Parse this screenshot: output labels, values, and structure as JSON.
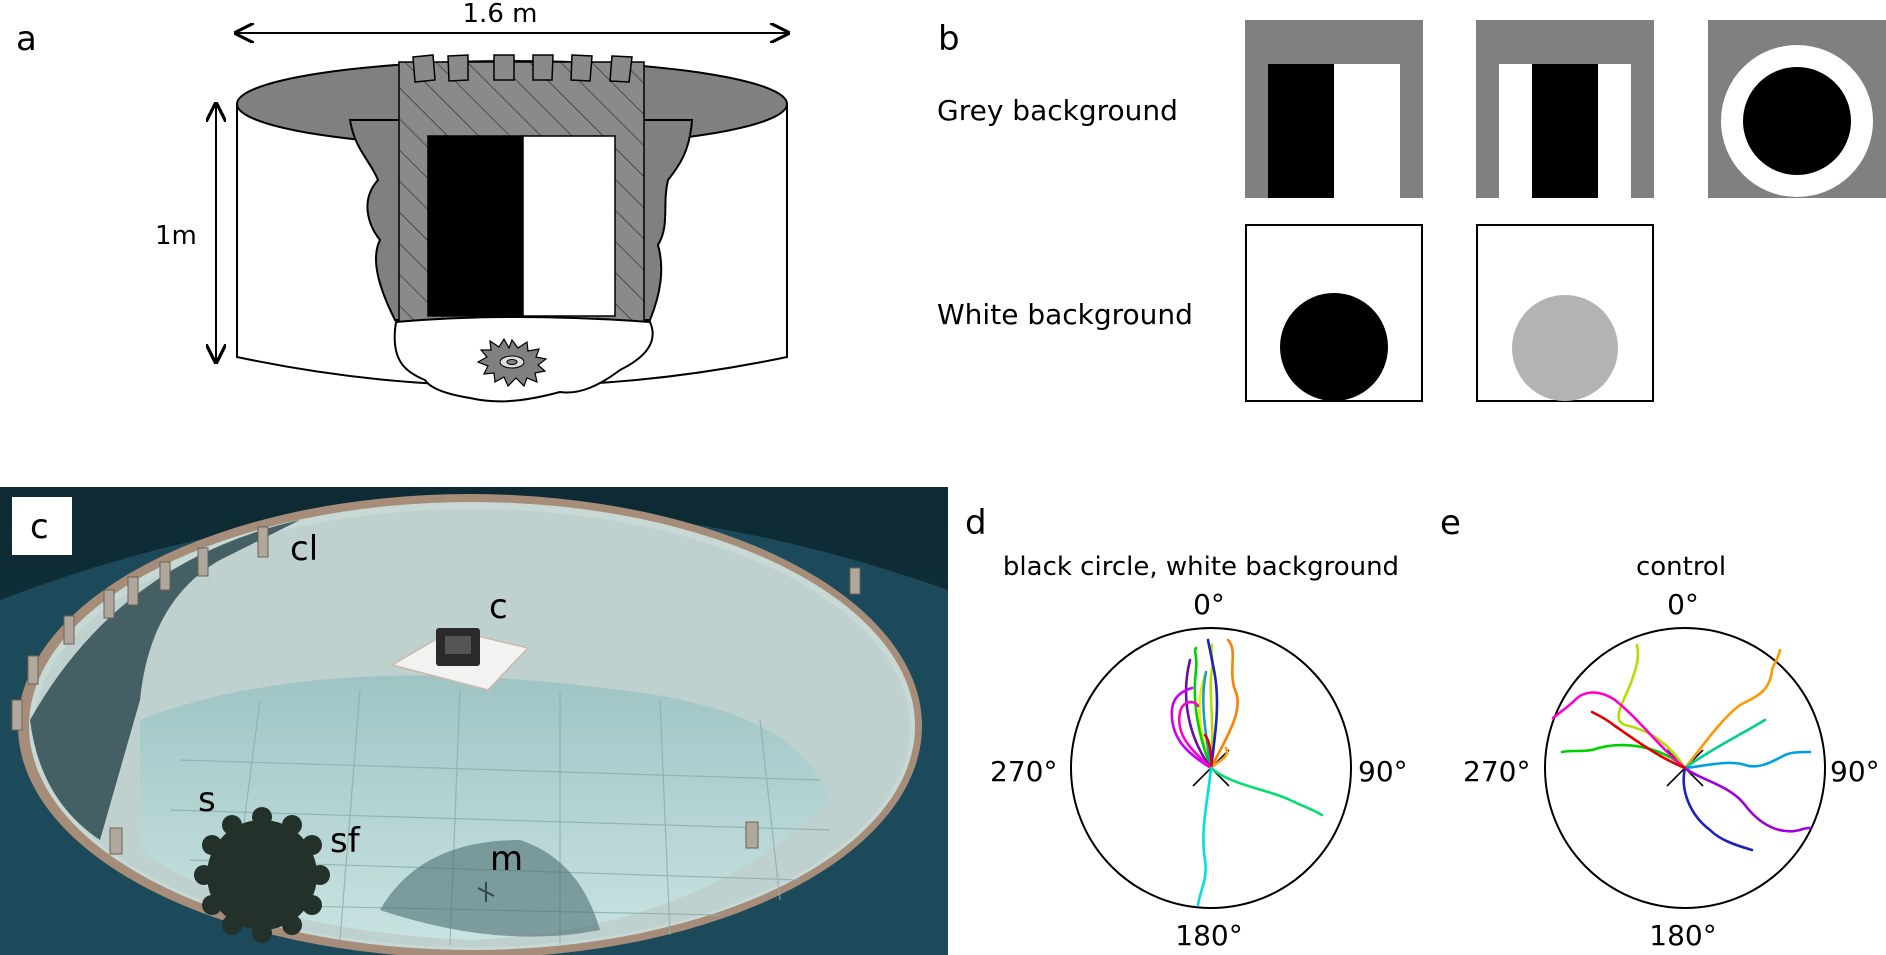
{
  "panel_labels": {
    "a": "a",
    "b": "b",
    "c": "c",
    "d": "d",
    "e": "e"
  },
  "panel_a": {
    "width_label": "1.6 m",
    "height_label": "1m"
  },
  "panel_b": {
    "grey_row_label": "Grey background",
    "white_row_label": "White background",
    "colors": {
      "grey": "#808080",
      "black": "#000000",
      "white": "#ffffff",
      "light_grey": "#b3b3b3"
    }
  },
  "panel_c": {
    "labels": {
      "cl": "cl",
      "c": "c",
      "s": "s",
      "sf": "sf",
      "m": "m"
    }
  },
  "panel_d": {
    "title": "black circle, white background",
    "angles": {
      "top": "0°",
      "right": "90°",
      "bottom": "180°",
      "left": "270°"
    }
  },
  "panel_e": {
    "title": "control",
    "angles": {
      "top": "0°",
      "right": "90°",
      "bottom": "180°",
      "left": "270°"
    }
  }
}
